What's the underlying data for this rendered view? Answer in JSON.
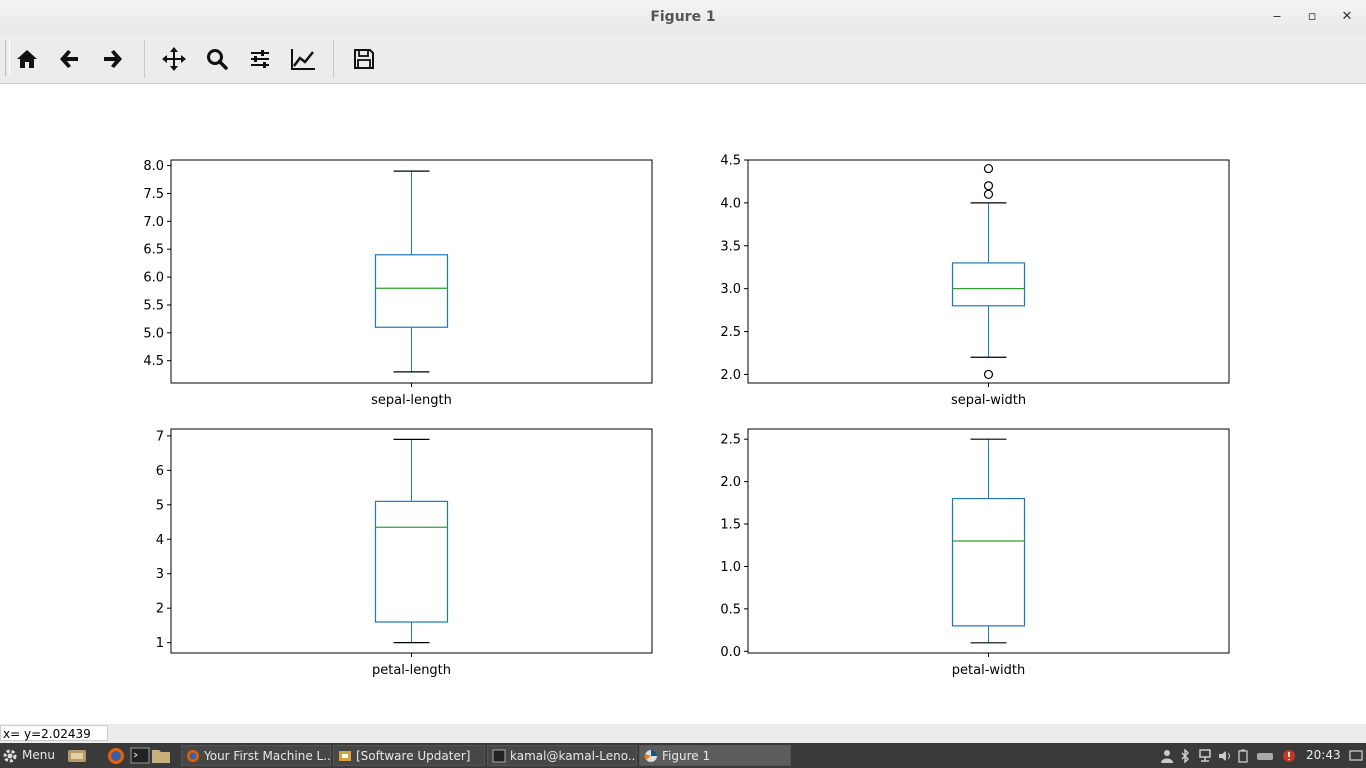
{
  "window": {
    "title": "Figure 1"
  },
  "toolbar": {
    "icons": [
      "home-icon",
      "back-arrow-icon",
      "forward-arrow-icon",
      "pan-icon",
      "zoom-icon",
      "subplots-config-icon",
      "edit-axis-icon",
      "save-icon"
    ]
  },
  "status": {
    "coord_text": "x= y=2.02439"
  },
  "taskbar": {
    "menu_label": "Menu",
    "tasks": [
      {
        "label": "Your First Machine L..."
      },
      {
        "label": "[Software Updater]"
      },
      {
        "label": "kamal@kamal-Leno..."
      },
      {
        "label": "Figure 1"
      }
    ],
    "clock": "20:43"
  },
  "colors": {
    "box": "#1f77b4",
    "median": "#2ca02c",
    "axis": "#000000"
  },
  "chart_data": [
    {
      "type": "box",
      "xlabel": "sepal-length",
      "ylim": [
        4.1,
        8.1
      ],
      "yticks": [
        4.5,
        5.0,
        5.5,
        6.0,
        6.5,
        7.0,
        7.5,
        8.0
      ],
      "ytick_labels": [
        "4.5",
        "5.0",
        "5.5",
        "6.0",
        "6.5",
        "7.0",
        "7.5",
        "8.0"
      ],
      "whisker_low": 4.3,
      "q1": 5.1,
      "median": 5.8,
      "q3": 6.4,
      "whisker_high": 7.9,
      "outliers": []
    },
    {
      "type": "box",
      "xlabel": "sepal-width",
      "ylim": [
        1.9,
        4.5
      ],
      "yticks": [
        2.0,
        2.5,
        3.0,
        3.5,
        4.0,
        4.5
      ],
      "ytick_labels": [
        "2.0",
        "2.5",
        "3.0",
        "3.5",
        "4.0",
        "4.5"
      ],
      "whisker_low": 2.2,
      "q1": 2.8,
      "median": 3.0,
      "q3": 3.3,
      "whisker_high": 4.0,
      "outliers": [
        4.4,
        4.2,
        4.1,
        2.0
      ]
    },
    {
      "type": "box",
      "xlabel": "petal-length",
      "ylim": [
        0.7,
        7.2
      ],
      "yticks": [
        1,
        2,
        3,
        4,
        5,
        6,
        7
      ],
      "ytick_labels": [
        "1",
        "2",
        "3",
        "4",
        "5",
        "6",
        "7"
      ],
      "whisker_low": 1.0,
      "q1": 1.6,
      "median": 4.35,
      "q3": 5.1,
      "whisker_high": 6.9,
      "outliers": []
    },
    {
      "type": "box",
      "xlabel": "petal-width",
      "ylim": [
        -0.02,
        2.62
      ],
      "yticks": [
        0.0,
        0.5,
        1.0,
        1.5,
        2.0,
        2.5
      ],
      "ytick_labels": [
        "0.0",
        "0.5",
        "1.0",
        "1.5",
        "2.0",
        "2.5"
      ],
      "whisker_low": 0.1,
      "q1": 0.3,
      "median": 1.3,
      "q3": 1.8,
      "whisker_high": 2.5,
      "outliers": []
    }
  ]
}
